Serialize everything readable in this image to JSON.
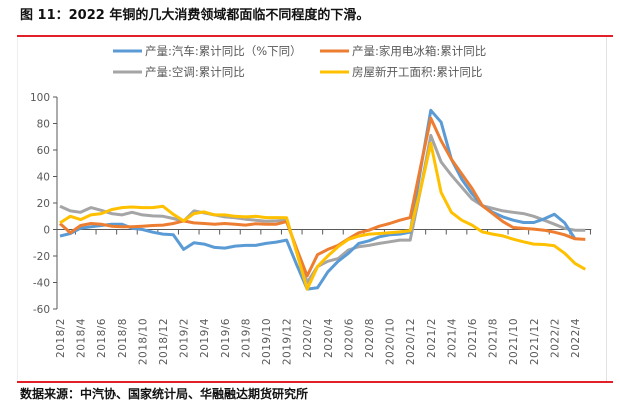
{
  "title": "图 11：2022 年铜的几大消费领域都面临不同程度的下滑。",
  "source": "数据来源：中汽协、国家统计局、华融融达期货研究所",
  "chart_data": {
    "type": "line",
    "title": "",
    "xlabel": "",
    "ylabel": "",
    "ylim": [
      -60,
      100
    ],
    "yticks": [
      100,
      80,
      60,
      40,
      20,
      0,
      -20,
      -40,
      -60
    ],
    "grid": false,
    "legend_placement": "top",
    "x": [
      "2018/2",
      "2018/3",
      "2018/4",
      "2018/5",
      "2018/6",
      "2018/7",
      "2018/8",
      "2018/9",
      "2018/10",
      "2018/11",
      "2018/12",
      "2019/1",
      "2019/2",
      "2019/3",
      "2019/4",
      "2019/5",
      "2019/6",
      "2019/7",
      "2019/8",
      "2019/9",
      "2019/10",
      "2019/11",
      "2019/12",
      "2020/1",
      "2020/2",
      "2020/3",
      "2020/4",
      "2020/5",
      "2020/6",
      "2020/7",
      "2020/8",
      "2020/9",
      "2020/10",
      "2020/11",
      "2020/12",
      "2021/1",
      "2021/2",
      "2021/3",
      "2021/4",
      "2021/5",
      "2021/6",
      "2021/7",
      "2021/8",
      "2021/9",
      "2021/10",
      "2021/11",
      "2021/12",
      "2022/1",
      "2022/2",
      "2022/3",
      "2022/4",
      "2022/5"
    ],
    "xtick_labels": [
      "2018/2",
      "2018/4",
      "2018/6",
      "2018/8",
      "2018/10",
      "2018/12",
      "2019/2",
      "2019/4",
      "2019/6",
      "2019/8",
      "2019/10",
      "2019/12",
      "2020/2",
      "2020/4",
      "2020/6",
      "2020/8",
      "2020/10",
      "2020/12",
      "2021/2",
      "2021/4",
      "2021/6",
      "2021/8",
      "2021/10",
      "2021/12",
      "2022/2",
      "2022/4"
    ],
    "series": [
      {
        "name": "产量:汽车:累计同比（%下同）",
        "color": "#5b9bd5",
        "values": [
          -5,
          -3,
          1,
          2,
          3,
          4,
          4,
          1,
          0,
          -2,
          -3.5,
          -4,
          -15,
          -10,
          -11,
          -13.5,
          -14,
          -12.5,
          -12,
          -12,
          -10.5,
          -9.5,
          -8,
          -27,
          -45,
          -44,
          -32,
          -24,
          -18,
          -10.5,
          -8.5,
          -5.5,
          -4,
          -3.5,
          -2,
          45,
          90,
          81,
          53,
          38,
          27,
          18,
          13,
          9.5,
          7,
          5.3,
          5.3,
          8,
          11.5,
          5,
          -7,
          null
        ]
      },
      {
        "name": "产量:家用电冰箱:累计同比",
        "color": "#ed7d31",
        "values": [
          4.5,
          -2.5,
          3,
          4.5,
          4,
          2.5,
          2,
          2,
          2.5,
          3,
          3.3,
          4.5,
          6.5,
          5,
          4.5,
          4,
          4.5,
          4,
          3.3,
          4.3,
          4,
          4,
          6,
          -15,
          -35,
          -19,
          -15,
          -12,
          -7,
          -2.5,
          -0.5,
          2.5,
          4.5,
          7,
          9,
          47,
          84,
          67,
          53,
          42,
          31,
          18,
          12,
          6,
          1.5,
          0.8,
          0.3,
          -0.5,
          -2,
          -4,
          -7,
          -7.5
        ]
      },
      {
        "name": "产量:空调:累计同比",
        "color": "#a5a5a5",
        "values": [
          17.5,
          14,
          13,
          16.5,
          14.5,
          12,
          11,
          13,
          11,
          10.3,
          10,
          8.3,
          6.3,
          14,
          12.5,
          11,
          9.5,
          8.8,
          7.8,
          7,
          6.3,
          6.5,
          7,
          -16,
          -40,
          -28,
          -24,
          -22,
          -15.5,
          -13,
          -12,
          -10.5,
          -9.3,
          -8,
          -8,
          30,
          71,
          51,
          41,
          32,
          23,
          18,
          16,
          14,
          13,
          12,
          10,
          7,
          4,
          0.8,
          -0.5,
          -0.5
        ]
      },
      {
        "name": "房屋新开工面积:累计同比",
        "color": "#ffc000",
        "values": [
          5,
          10,
          7.5,
          11,
          12,
          15,
          16.5,
          17,
          16.5,
          16.5,
          17.5,
          11.5,
          6.5,
          12,
          13.3,
          11,
          11,
          10,
          9.5,
          10,
          9,
          9,
          8.8,
          -18,
          -45,
          -28,
          -20,
          -13,
          -7.5,
          -5,
          -3.5,
          -3,
          -2.5,
          -1.8,
          -1,
          30,
          65,
          28,
          13,
          7,
          3.3,
          -1.8,
          -3.5,
          -4.8,
          -7.3,
          -9.3,
          -11,
          -11.3,
          -12.3,
          -18,
          -25.6,
          -30
        ]
      }
    ]
  }
}
